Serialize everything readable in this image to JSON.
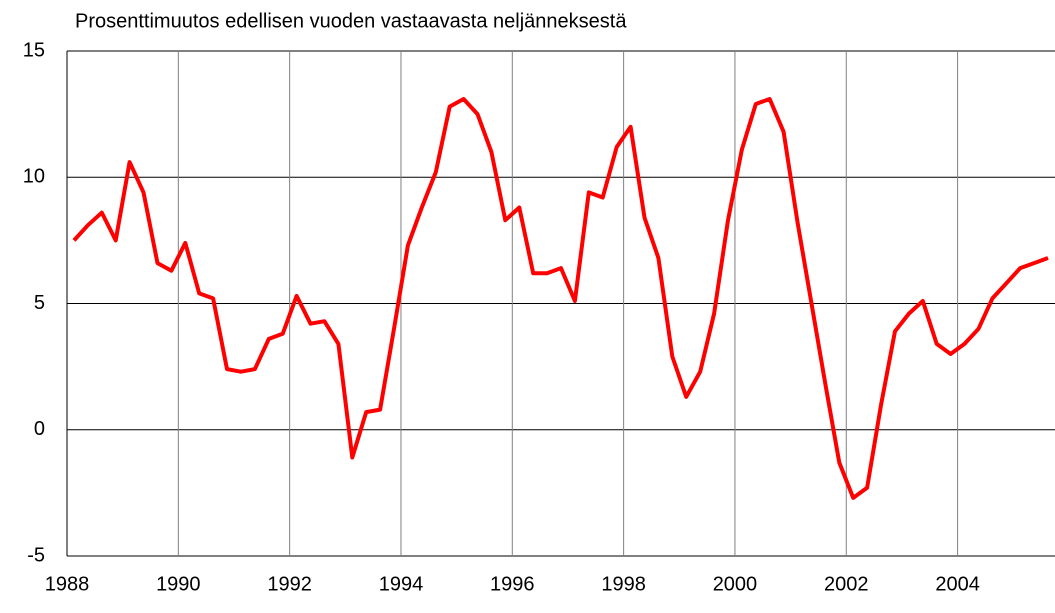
{
  "chart_data": {
    "type": "line",
    "title": "Prosenttimuutos edellisen vuoden vastaavasta neljänneksestä",
    "x": [
      1988.125,
      1988.375,
      1988.625,
      1988.875,
      1989.125,
      1989.375,
      1989.625,
      1989.875,
      1990.125,
      1990.375,
      1990.625,
      1990.875,
      1991.125,
      1991.375,
      1991.625,
      1991.875,
      1992.125,
      1992.375,
      1992.625,
      1992.875,
      1993.125,
      1993.375,
      1993.625,
      1993.875,
      1994.125,
      1994.375,
      1994.625,
      1994.875,
      1995.125,
      1995.375,
      1995.625,
      1995.875,
      1996.125,
      1996.375,
      1996.625,
      1996.875,
      1997.125,
      1997.375,
      1997.625,
      1997.875,
      1998.125,
      1998.375,
      1998.625,
      1998.875,
      1999.125,
      1999.375,
      1999.625,
      1999.875,
      2000.125,
      2000.375,
      2000.625,
      2000.875,
      2001.125,
      2001.375,
      2001.625,
      2001.875,
      2002.125,
      2002.375,
      2002.625,
      2002.875,
      2003.125,
      2003.375,
      2003.625,
      2003.875,
      2004.125,
      2004.375,
      2004.625,
      2004.875,
      2005.125,
      2005.375,
      2005.625
    ],
    "series": [
      {
        "name": "Prosenttimuutos",
        "color": "#ff0000",
        "values": [
          7.5,
          8.1,
          8.6,
          7.5,
          10.6,
          9.4,
          6.6,
          6.3,
          7.4,
          5.4,
          5.2,
          2.4,
          2.3,
          2.4,
          3.6,
          3.8,
          5.3,
          4.2,
          4.3,
          3.4,
          -1.1,
          0.7,
          0.8,
          4.0,
          7.3,
          8.8,
          10.2,
          12.8,
          13.1,
          12.5,
          11.0,
          8.3,
          8.8,
          6.2,
          6.2,
          6.4,
          5.1,
          9.4,
          9.2,
          11.2,
          12.0,
          8.4,
          6.8,
          2.9,
          1.3,
          2.3,
          4.6,
          8.3,
          11.1,
          12.9,
          13.1,
          11.8,
          8.2,
          5.0,
          1.8,
          -1.3,
          -2.7,
          -2.3,
          1.0,
          3.9,
          4.6,
          5.1,
          3.4,
          3.0,
          3.4,
          4.0,
          5.2,
          5.8,
          6.4,
          6.6,
          6.8
        ]
      }
    ],
    "xlim": [
      1988,
      2005.75
    ],
    "xticks": [
      1988,
      1990,
      1992,
      1994,
      1996,
      1998,
      2000,
      2002,
      2004
    ],
    "ylim": [
      -5,
      15
    ],
    "yticks": [
      -5,
      0,
      5,
      10,
      15
    ],
    "grid": true
  }
}
